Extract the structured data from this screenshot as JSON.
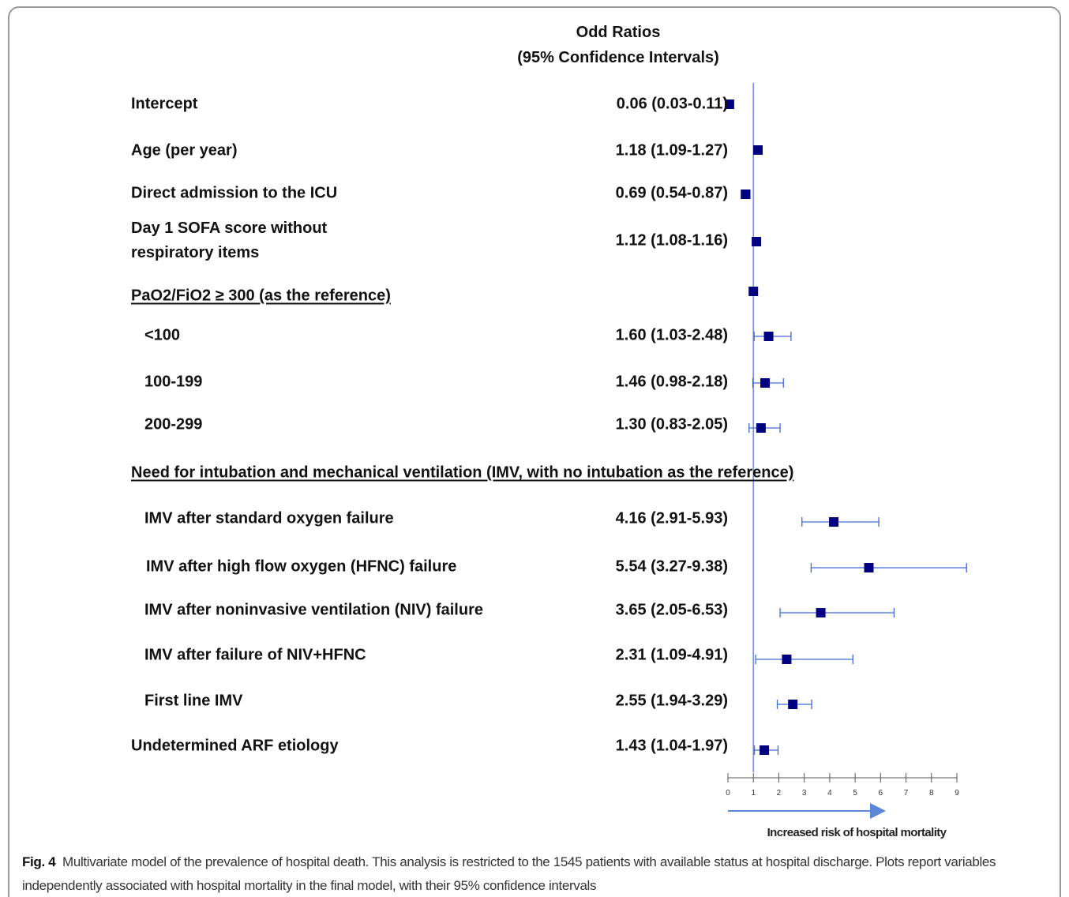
{
  "chart_data": {
    "type": "forest",
    "title": "Odd Ratios",
    "subtitle": "(95% Confidence Intervals)",
    "categories": [
      "Intercept",
      "Age (per year)",
      "Direct admission to the ICU",
      "Day 1 SOFA score without respiratory items",
      "PaO2/FiO2 ≥ 300 (as the reference)",
      "<100",
      "100-199",
      "200-299",
      "Need for intubation and mechanical ventilation (IMV, with no intubation as the reference)",
      "IMV after standard oxygen failure",
      "IMV after high flow oxygen (HFNC) failure",
      "IMV after noninvasive ventilation (NIV) failure",
      "IMV after failure of NIV+HFNC",
      "First line IMV",
      "Undetermined ARF etiology"
    ],
    "values": [
      0.06,
      1.18,
      0.69,
      1.12,
      1,
      1.6,
      1.46,
      1.3,
      null,
      4.16,
      5.54,
      3.65,
      2.31,
      2.55,
      1.43
    ],
    "lower": [
      0.03,
      1.09,
      0.54,
      1.08,
      null,
      1.03,
      0.98,
      0.83,
      null,
      2.91,
      3.27,
      2.05,
      1.09,
      1.94,
      1.04
    ],
    "upper": [
      0.11,
      1.27,
      0.87,
      1.16,
      null,
      2.48,
      2.18,
      2.05,
      null,
      5.93,
      9.38,
      6.53,
      4.91,
      3.29,
      1.97
    ],
    "value_labels": [
      "0.06 (0.03-0.11)",
      "1.18 (1.09-1.27)",
      "0.69 (0.54-0.87)",
      "1.12 (1.08-1.16)",
      null,
      "1.60 (1.03-2.48)",
      "1.46 (0.98-2.18)",
      "1.30 (0.83-2.05)",
      null,
      "4.16 (2.91-5.93)",
      "5.54 (3.27-9.38)",
      "3.65 (2.05-6.53)",
      "2.31 (1.09-4.91)",
      "2.55 (1.94-3.29)",
      "1.43 (1.04-1.97)"
    ],
    "reference_line": 1,
    "xlim": [
      0,
      9
    ],
    "xticks": [
      0,
      1,
      2,
      3,
      4,
      5,
      6,
      7,
      8,
      9
    ],
    "xlabel": "Increased risk of hospital mortality",
    "marker_color": "#000080",
    "ci_color": "#4169d6",
    "caption_label": "Fig. 4",
    "caption": "Multivariate model of the prevalence of hospital death. This analysis is restricted to the 1545 patients with available status at hospital discharge. Plots report variables independently associated with hospital mortality in the final model, with their 95% confidence intervals"
  }
}
